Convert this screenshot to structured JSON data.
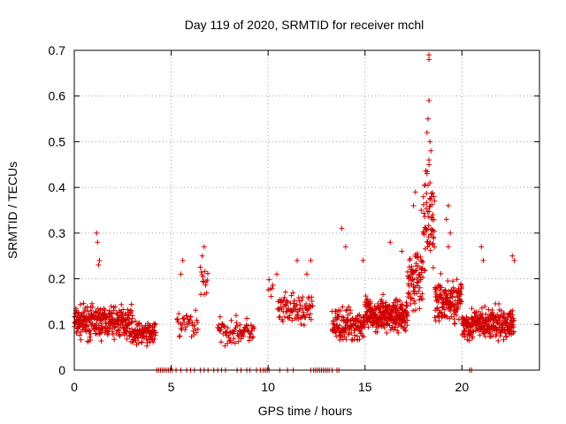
{
  "chart_data": {
    "type": "scatter",
    "title": "Day 119 of 2020, SRMTID for receiver mchl",
    "xlabel": "GPS time / hours",
    "ylabel": "SRMTID / TECUs",
    "xlim": [
      0,
      24
    ],
    "ylim": [
      0,
      0.7
    ],
    "xticks": [
      0,
      5,
      10,
      15,
      20
    ],
    "xtick_labels": [
      "0",
      "5",
      "10",
      "15",
      "20"
    ],
    "yticks": [
      0,
      0.1,
      0.2,
      0.3,
      0.4,
      0.5,
      0.6,
      0.7
    ],
    "ytick_labels": [
      "0",
      "0.1",
      "0.2",
      "0.3",
      "0.4",
      "0.5",
      "0.6",
      "0.7"
    ],
    "grid": true,
    "marker": "+",
    "color": "#d00000",
    "series": [
      {
        "name": "SRMTID",
        "segments": [
          {
            "x_start": 0.0,
            "x_end": 3.0,
            "baseline": 0.105,
            "spread": 0.05,
            "step": 0.01
          },
          {
            "x_start": 3.0,
            "x_end": 4.2,
            "baseline": 0.08,
            "spread": 0.035,
            "step": 0.012
          },
          {
            "x_start": 5.3,
            "x_end": 6.4,
            "baseline": 0.1,
            "spread": 0.05,
            "step": 0.03
          },
          {
            "x_start": 6.5,
            "x_end": 6.9,
            "baseline": 0.2,
            "spread": 0.08,
            "step": 0.03
          },
          {
            "x_start": 7.4,
            "x_end": 9.3,
            "baseline": 0.085,
            "spread": 0.04,
            "step": 0.025
          },
          {
            "x_start": 10.0,
            "x_end": 10.3,
            "baseline": 0.17,
            "spread": 0.06,
            "step": 0.05
          },
          {
            "x_start": 10.5,
            "x_end": 12.3,
            "baseline": 0.13,
            "spread": 0.05,
            "step": 0.02
          },
          {
            "x_start": 13.3,
            "x_end": 15.0,
            "baseline": 0.1,
            "spread": 0.05,
            "step": 0.012
          },
          {
            "x_start": 15.0,
            "x_end": 17.2,
            "baseline": 0.12,
            "spread": 0.05,
            "step": 0.008
          },
          {
            "x_start": 17.2,
            "x_end": 18.0,
            "baseline": 0.2,
            "spread": 0.09,
            "step": 0.01
          },
          {
            "x_start": 18.0,
            "x_end": 18.6,
            "baseline": 0.32,
            "spread": 0.15,
            "step": 0.01
          },
          {
            "x_start": 18.6,
            "x_end": 20.0,
            "baseline": 0.15,
            "spread": 0.07,
            "step": 0.01
          },
          {
            "x_start": 20.0,
            "x_end": 22.7,
            "baseline": 0.1,
            "spread": 0.05,
            "step": 0.01
          }
        ],
        "extra_points": [
          [
            1.15,
            0.3
          ],
          [
            1.2,
            0.28
          ],
          [
            1.3,
            0.24
          ],
          [
            1.25,
            0.23
          ],
          [
            5.6,
            0.24
          ],
          [
            5.5,
            0.21
          ],
          [
            6.7,
            0.27
          ],
          [
            6.6,
            0.25
          ],
          [
            10.45,
            0.21
          ],
          [
            11.5,
            0.24
          ],
          [
            12.2,
            0.24
          ],
          [
            12.0,
            0.21
          ],
          [
            13.8,
            0.31
          ],
          [
            14.0,
            0.27
          ],
          [
            14.9,
            0.24
          ],
          [
            16.3,
            0.28
          ],
          [
            16.9,
            0.26
          ],
          [
            17.6,
            0.39
          ],
          [
            17.5,
            0.36
          ],
          [
            17.9,
            0.35
          ],
          [
            18.3,
            0.69
          ],
          [
            18.3,
            0.68
          ],
          [
            18.3,
            0.59
          ],
          [
            18.25,
            0.55
          ],
          [
            18.2,
            0.52
          ],
          [
            18.35,
            0.5
          ],
          [
            18.4,
            0.48
          ],
          [
            18.3,
            0.46
          ],
          [
            18.2,
            0.43
          ],
          [
            18.35,
            0.41
          ],
          [
            18.45,
            0.38
          ],
          [
            18.5,
            0.34
          ],
          [
            19.3,
            0.36
          ],
          [
            19.2,
            0.33
          ],
          [
            19.4,
            0.3
          ],
          [
            19.3,
            0.27
          ],
          [
            21.0,
            0.27
          ],
          [
            21.1,
            0.24
          ],
          [
            22.6,
            0.25
          ],
          [
            22.7,
            0.24
          ]
        ],
        "zero_points": [
          4.25,
          4.35,
          4.45,
          4.55,
          4.65,
          4.75,
          4.85,
          4.95,
          5.05,
          5.25,
          5.5,
          5.8,
          6.0,
          6.2,
          6.5,
          6.7,
          6.9,
          7.2,
          7.4,
          7.6,
          7.8,
          8.4,
          8.6,
          8.9,
          9.05,
          9.4,
          9.6,
          9.75,
          9.85,
          9.95,
          10.05,
          10.6,
          11.0,
          11.3,
          12.2,
          12.35,
          12.45,
          12.55,
          12.65,
          12.75,
          12.85,
          12.95,
          13.05,
          13.15,
          13.3,
          13.55,
          13.65,
          20.4,
          20.5
        ]
      }
    ]
  }
}
